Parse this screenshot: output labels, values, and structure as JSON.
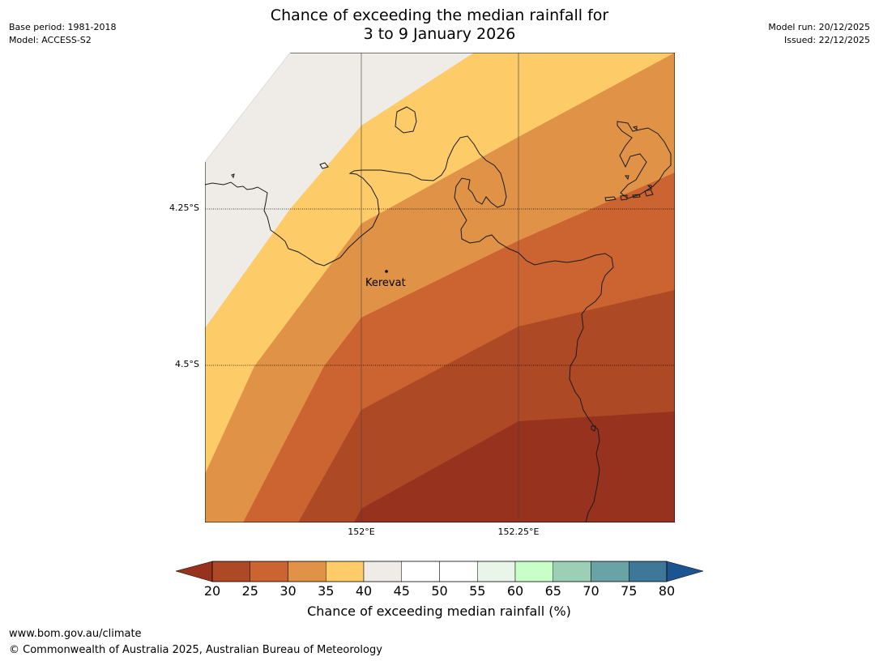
{
  "header": {
    "title_line1": "Chance of exceeding the median rainfall for",
    "title_line2": "3 to 9 January 2026",
    "base_period": "Base period: 1981-2018",
    "model": "Model: ACCESS-S2",
    "model_run": "Model run: 20/12/2025",
    "issued": "Issued: 22/12/2025"
  },
  "map": {
    "lat_labels": [
      "4.25°S",
      "4.5°S"
    ],
    "lon_labels": [
      "152°E",
      "152.25°E"
    ],
    "place_name": "Kerevat",
    "band_colors": {
      "b40": "#efebe6",
      "b35": "#fdcb68",
      "b30": "#e09346",
      "b25": "#cb6430",
      "b20": "#ae4925",
      "below20": "#96321e"
    }
  },
  "colorbar": {
    "ticks": [
      "20",
      "25",
      "30",
      "35",
      "40",
      "45",
      "50",
      "55",
      "60",
      "65",
      "70",
      "75",
      "80"
    ],
    "colors": [
      "#ae4925",
      "#cb6430",
      "#e09346",
      "#fdcb68",
      "#efebe6",
      "#ffffff",
      "#ffffff",
      "#e8f5e8",
      "#c8ffc8",
      "#9bcfb6",
      "#6aa3a6",
      "#3e7898"
    ],
    "extend_low_color": "#96321e",
    "extend_high_color": "#1c5492",
    "label": "Chance of exceeding median rainfall (%)"
  },
  "footer": {
    "website": "www.bom.gov.au/climate",
    "copyright": "© Commonwealth of Australia 2025, Australian Bureau of Meteorology"
  }
}
